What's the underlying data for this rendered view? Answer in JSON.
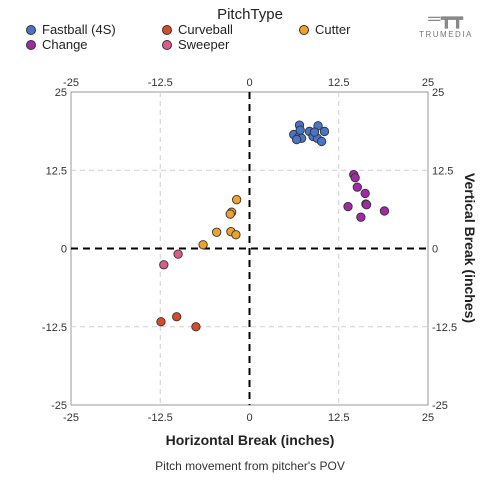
{
  "legend": {
    "title": "PitchType",
    "items": [
      {
        "label": "Fastball (4S)",
        "color": "#4a74c9"
      },
      {
        "label": "Curveball",
        "color": "#d64b2c"
      },
      {
        "label": "Cutter",
        "color": "#f0a12c"
      },
      {
        "label": "Change",
        "color": "#9e2aa8"
      },
      {
        "label": "Sweeper",
        "color": "#db5c8a"
      }
    ]
  },
  "logo": {
    "text": "TRUMEDIA"
  },
  "chart_data": {
    "type": "scatter",
    "title": "",
    "xlabel": "Horizontal Break (inches)",
    "ylabel": "Vertical Break (inches)",
    "caption": "Pitch movement from pitcher's POV",
    "xlim": [
      -25,
      25
    ],
    "ylim": [
      -25,
      25
    ],
    "x_ticks": [
      -25,
      -12.5,
      0,
      12.5,
      25
    ],
    "y_ticks": [
      -25,
      -12.5,
      0,
      12.5,
      25
    ],
    "x_tick_labels": [
      "-25",
      "-12.5",
      "0",
      "12.5",
      "25"
    ],
    "y_tick_labels": [
      "-25",
      "-12.5",
      "0",
      "12.5",
      "25"
    ],
    "grid": true,
    "legend_position": "top",
    "series": [
      {
        "name": "Fastball (4S)",
        "color": "#4a74c9",
        "points": [
          [
            7.0,
            19.7
          ],
          [
            8.4,
            18.7
          ],
          [
            9.6,
            19.6
          ],
          [
            10.5,
            18.7
          ],
          [
            6.2,
            18.2
          ],
          [
            6.9,
            17.8
          ],
          [
            7.3,
            17.6
          ],
          [
            8.9,
            17.9
          ],
          [
            9.5,
            17.6
          ],
          [
            10.1,
            17.1
          ],
          [
            7.1,
            18.9
          ],
          [
            9.1,
            18.6
          ],
          [
            6.6,
            17.4
          ]
        ]
      },
      {
        "name": "Curveball",
        "color": "#d64b2c",
        "points": [
          [
            -12.4,
            -11.7
          ],
          [
            -10.2,
            -10.9
          ],
          [
            -7.5,
            -12.5
          ]
        ]
      },
      {
        "name": "Cutter",
        "color": "#f0a12c",
        "points": [
          [
            -1.8,
            7.8
          ],
          [
            -2.5,
            5.8
          ],
          [
            -2.7,
            5.5
          ],
          [
            -4.6,
            2.6
          ],
          [
            -2.6,
            2.7
          ],
          [
            -1.9,
            2.2
          ],
          [
            -6.5,
            0.6
          ]
        ]
      },
      {
        "name": "Change",
        "color": "#9e2aa8",
        "points": [
          [
            14.6,
            11.8
          ],
          [
            14.8,
            11.3
          ],
          [
            15.1,
            9.8
          ],
          [
            16.2,
            8.8
          ],
          [
            16.3,
            7.1
          ],
          [
            16.4,
            7.0
          ],
          [
            13.8,
            6.7
          ],
          [
            18.9,
            6.0
          ],
          [
            15.6,
            5.0
          ]
        ]
      },
      {
        "name": "Sweeper",
        "color": "#db5c8a",
        "points": [
          [
            -12.0,
            -2.6
          ],
          [
            -10.0,
            -0.9
          ]
        ]
      }
    ]
  }
}
